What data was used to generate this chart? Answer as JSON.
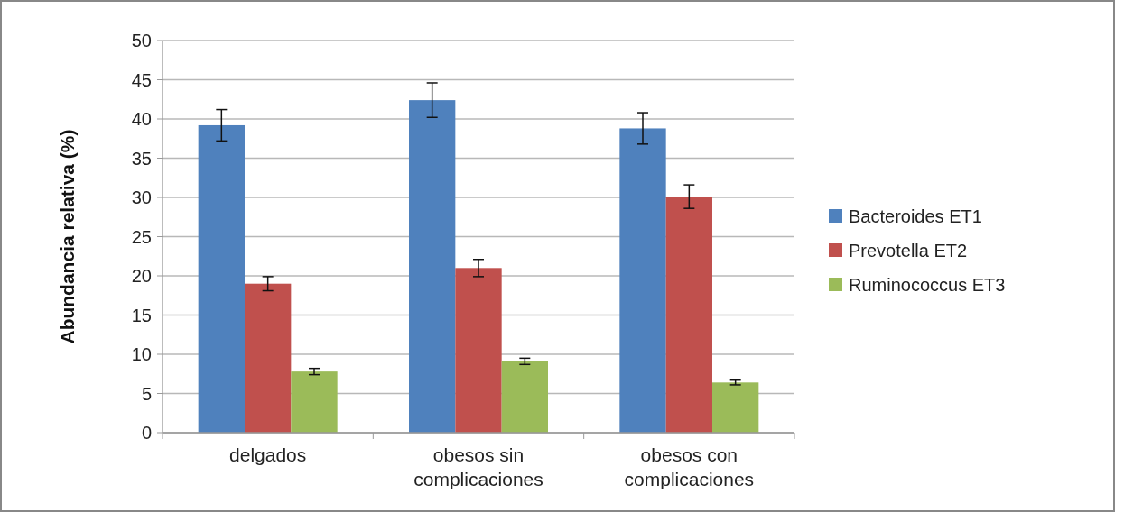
{
  "chart_data": {
    "type": "bar",
    "ylabel": "Abundancia relativa (%)",
    "categories": [
      "delgados",
      "obesos sin complicaciones",
      "obesos con complicaciones"
    ],
    "series": [
      {
        "name": "Bacteroides ET1",
        "color": "#4f81bd",
        "values": [
          39.2,
          42.4,
          38.8
        ],
        "errors": [
          2.0,
          2.2,
          2.0
        ]
      },
      {
        "name": "Prevotella ET2",
        "color": "#c0504d",
        "values": [
          19.0,
          21.0,
          30.1
        ],
        "errors": [
          0.9,
          1.1,
          1.5
        ]
      },
      {
        "name": "Ruminococcus ET3",
        "color": "#9bbb59",
        "values": [
          7.8,
          9.1,
          6.4
        ],
        "errors": [
          0.4,
          0.4,
          0.3
        ]
      }
    ],
    "ylim": [
      0,
      50
    ],
    "yticks": [
      0,
      5,
      10,
      15,
      20,
      25,
      30,
      35,
      40,
      45,
      50
    ],
    "grid": "y",
    "legend": "right"
  }
}
